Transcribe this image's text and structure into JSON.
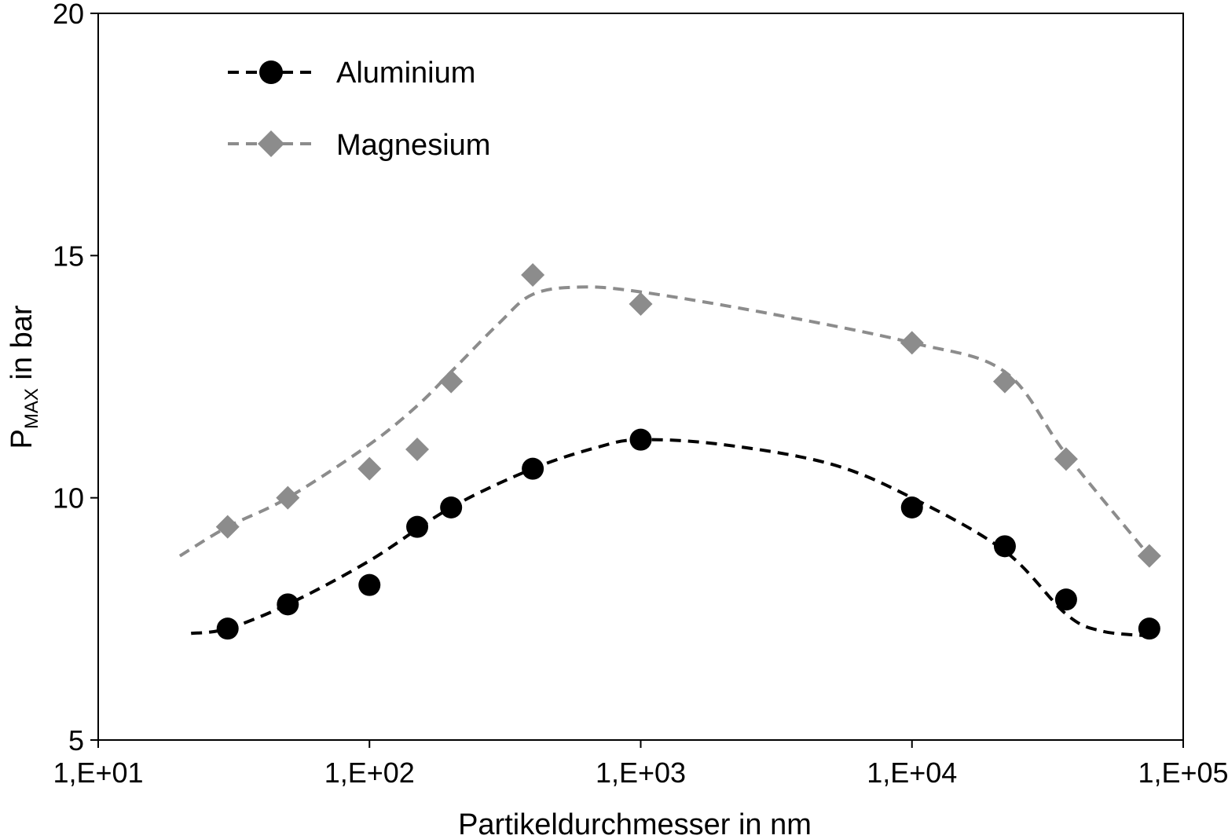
{
  "chart_data": {
    "type": "scatter",
    "title": "",
    "xlabel": "Partikeldurchmesser in nm",
    "ylabel": {
      "main": "P",
      "sub": "MAX",
      "suffix": " in bar"
    },
    "xscale": "log",
    "xlim": [
      10,
      100000
    ],
    "ylim": [
      5,
      20
    ],
    "xticks": [
      {
        "value": 10,
        "label": "1,E+01"
      },
      {
        "value": 100,
        "label": "1,E+02"
      },
      {
        "value": 1000,
        "label": "1,E+03"
      },
      {
        "value": 10000,
        "label": "1,E+04"
      },
      {
        "value": 100000,
        "label": "1,E+05"
      }
    ],
    "yticks": [
      {
        "value": 5,
        "label": "5"
      },
      {
        "value": 10,
        "label": "10"
      },
      {
        "value": 15,
        "label": "15"
      },
      {
        "value": 20,
        "label": "20"
      }
    ],
    "grid": false,
    "legend_position": "top-left",
    "series": [
      {
        "name": "Aluminium",
        "marker": "circle",
        "color": "#000000",
        "points": [
          {
            "x": 30,
            "y": 7.3
          },
          {
            "x": 50,
            "y": 7.8
          },
          {
            "x": 100,
            "y": 8.2
          },
          {
            "x": 150,
            "y": 9.4
          },
          {
            "x": 200,
            "y": 9.8
          },
          {
            "x": 400,
            "y": 10.6
          },
          {
            "x": 1000,
            "y": 11.2
          },
          {
            "x": 10000,
            "y": 9.8
          },
          {
            "x": 22000,
            "y": 9.0
          },
          {
            "x": 37000,
            "y": 7.9
          },
          {
            "x": 75000,
            "y": 7.3
          }
        ],
        "trend": [
          {
            "x": 22,
            "y": 7.2
          },
          {
            "x": 30,
            "y": 7.3
          },
          {
            "x": 50,
            "y": 7.8
          },
          {
            "x": 100,
            "y": 8.7
          },
          {
            "x": 200,
            "y": 9.8
          },
          {
            "x": 400,
            "y": 10.6
          },
          {
            "x": 700,
            "y": 11.05
          },
          {
            "x": 1000,
            "y": 11.2
          },
          {
            "x": 2000,
            "y": 11.1
          },
          {
            "x": 5000,
            "y": 10.7
          },
          {
            "x": 10000,
            "y": 10.0
          },
          {
            "x": 22000,
            "y": 8.9
          },
          {
            "x": 37000,
            "y": 7.6
          },
          {
            "x": 50000,
            "y": 7.25
          },
          {
            "x": 75000,
            "y": 7.15
          }
        ]
      },
      {
        "name": "Magnesium",
        "marker": "diamond",
        "color": "#8c8c8c",
        "points": [
          {
            "x": 30,
            "y": 9.4
          },
          {
            "x": 50,
            "y": 10.0
          },
          {
            "x": 100,
            "y": 10.6
          },
          {
            "x": 150,
            "y": 11.0
          },
          {
            "x": 200,
            "y": 12.4
          },
          {
            "x": 400,
            "y": 14.6
          },
          {
            "x": 1000,
            "y": 14.0
          },
          {
            "x": 10000,
            "y": 13.2
          },
          {
            "x": 22000,
            "y": 12.4
          },
          {
            "x": 37000,
            "y": 10.8
          },
          {
            "x": 75000,
            "y": 8.8
          }
        ],
        "trend": [
          {
            "x": 20,
            "y": 8.8
          },
          {
            "x": 30,
            "y": 9.4
          },
          {
            "x": 50,
            "y": 10.0
          },
          {
            "x": 100,
            "y": 11.1
          },
          {
            "x": 150,
            "y": 11.9
          },
          {
            "x": 200,
            "y": 12.6
          },
          {
            "x": 300,
            "y": 13.6
          },
          {
            "x": 400,
            "y": 14.2
          },
          {
            "x": 600,
            "y": 14.35
          },
          {
            "x": 1000,
            "y": 14.25
          },
          {
            "x": 3000,
            "y": 13.8
          },
          {
            "x": 10000,
            "y": 13.2
          },
          {
            "x": 22000,
            "y": 12.6
          },
          {
            "x": 37000,
            "y": 10.9
          },
          {
            "x": 75000,
            "y": 8.8
          }
        ]
      }
    ]
  }
}
